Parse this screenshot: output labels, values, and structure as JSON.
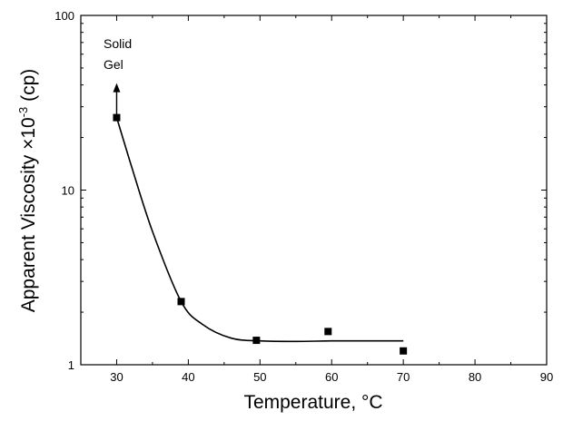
{
  "chart_data": {
    "type": "scatter",
    "xlabel": "Temperature, °C",
    "ylabel": {
      "prefix": "Apparent Viscosity ×10",
      "exponent": "-3",
      "suffix": " (cp)"
    },
    "xlim": [
      25,
      90
    ],
    "ylim": [
      1,
      100
    ],
    "y_scale": "log",
    "x_ticks": [
      30,
      40,
      50,
      60,
      70,
      80,
      90
    ],
    "y_ticks": [
      1,
      10,
      100
    ],
    "grid": false,
    "series": [
      {
        "marker": "square",
        "color": "#000000",
        "points": [
          {
            "x": 30,
            "y": 26
          },
          {
            "x": 39,
            "y": 2.3
          },
          {
            "x": 49.5,
            "y": 1.38
          },
          {
            "x": 59.5,
            "y": 1.55
          },
          {
            "x": 70,
            "y": 1.2
          }
        ]
      }
    ],
    "fit_curve": {
      "color": "#000000",
      "points": [
        {
          "x": 30,
          "y": 26
        },
        {
          "x": 32,
          "y": 14
        },
        {
          "x": 35,
          "y": 5.8
        },
        {
          "x": 39,
          "y": 2.3
        },
        {
          "x": 42,
          "y": 1.7
        },
        {
          "x": 46,
          "y": 1.42
        },
        {
          "x": 50,
          "y": 1.37
        },
        {
          "x": 55,
          "y": 1.36
        },
        {
          "x": 60,
          "y": 1.37
        },
        {
          "x": 65,
          "y": 1.37
        },
        {
          "x": 70,
          "y": 1.37
        }
      ]
    },
    "annotation": {
      "lines": [
        "Solid",
        "Gel"
      ],
      "arrow_x": 30,
      "arrow_from": 26,
      "arrow_to": 40
    }
  }
}
